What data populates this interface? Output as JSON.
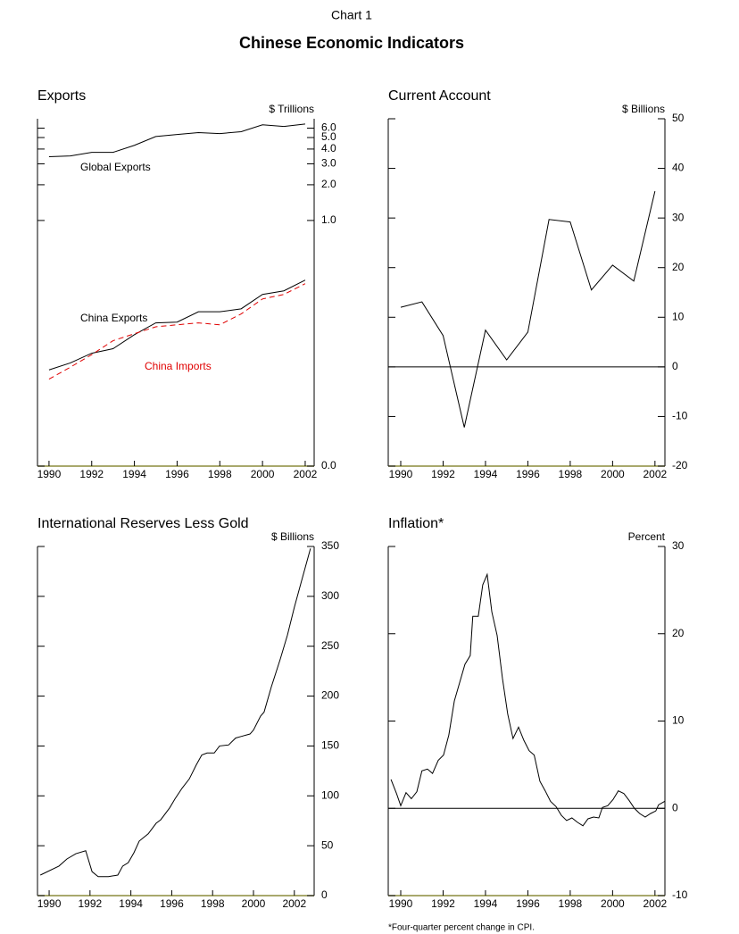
{
  "header": {
    "chart_label": "Chart 1",
    "title": "Chinese Economic Indicators"
  },
  "chart_data": [
    {
      "type": "line",
      "title": "Exports",
      "y_axis_label": "$ Trillions",
      "log_scale": true,
      "x": [
        1990,
        1991,
        1992,
        1993,
        1994,
        1995,
        1996,
        1997,
        1998,
        1999,
        2000,
        2001,
        2002
      ],
      "xlim": [
        1989.46,
        2002.42
      ],
      "xticks": [
        1990,
        1992,
        1994,
        1996,
        1998,
        2000,
        2002
      ],
      "ylim": [
        0.0085,
        7.2
      ],
      "yticks": [
        {
          "value": 0.0085,
          "label": "0.0"
        },
        {
          "value": 1,
          "label": "1.0"
        },
        {
          "value": 2,
          "label": "2.0"
        },
        {
          "value": 3,
          "label": "3.0"
        },
        {
          "value": 4,
          "label": "4.0"
        },
        {
          "value": 5,
          "label": "5.0"
        },
        {
          "value": 6,
          "label": "6.0"
        }
      ],
      "series": [
        {
          "name": "Global Exports",
          "color": "#000000",
          "style": "solid",
          "values": [
            3.45,
            3.5,
            3.75,
            3.75,
            4.3,
            5.1,
            5.3,
            5.5,
            5.4,
            5.6,
            6.4,
            6.2,
            6.5
          ]
        },
        {
          "name": "China Exports",
          "color": "#000000",
          "style": "solid",
          "values": [
            0.055,
            0.063,
            0.076,
            0.083,
            0.109,
            0.137,
            0.139,
            0.17,
            0.17,
            0.18,
            0.238,
            0.255,
            0.314
          ]
        },
        {
          "name": "China Imports",
          "color": "#e00000",
          "style": "dashed",
          "values": [
            0.046,
            0.058,
            0.074,
            0.097,
            0.111,
            0.127,
            0.132,
            0.137,
            0.132,
            0.163,
            0.218,
            0.238,
            0.293
          ]
        }
      ]
    },
    {
      "type": "line",
      "title": "Current Account",
      "y_axis_label": "$ Billions",
      "zero_line": true,
      "x": [
        1990,
        1991,
        1992,
        1993,
        1994,
        1995,
        1996,
        1997,
        1998,
        1999,
        2000,
        2001,
        2002
      ],
      "xlim": [
        1989.41,
        2002.47
      ],
      "xticks": [
        1990,
        1992,
        1994,
        1996,
        1998,
        2000,
        2002
      ],
      "ylim": [
        -20,
        50
      ],
      "yticks": [
        -20,
        -10,
        0,
        10,
        20,
        30,
        40,
        50
      ],
      "series": [
        {
          "color": "#000000",
          "style": "solid",
          "values": [
            12,
            13.1,
            6.3,
            -12.2,
            7.4,
            1.4,
            7,
            29.7,
            29.2,
            15.5,
            20.5,
            17.3,
            35.4
          ]
        }
      ]
    },
    {
      "type": "line",
      "title": "International Reserves Less Gold",
      "y_axis_label": "$ Billions",
      "x": [
        1989.57,
        1990.48,
        1990.87,
        1991.31,
        1991.79,
        1992.1,
        1992.4,
        1992.9,
        1993.36,
        1993.6,
        1993.87,
        1994.15,
        1994.41,
        1994.85,
        1995.24,
        1995.46,
        1995.9,
        1996.16,
        1996.5,
        1996.86,
        1997.2,
        1997.47,
        1997.73,
        1998.08,
        1998.34,
        1998.78,
        1999.13,
        1999.39,
        1999.83,
        2000.0,
        2000.35,
        2000.52,
        2000.87,
        2001.31,
        2001.66,
        2002.0,
        2002.36,
        2002.79
      ],
      "xlim": [
        1989.43,
        2002.97
      ],
      "xticks": [
        1990,
        1992,
        1994,
        1996,
        1998,
        2000,
        2002
      ],
      "ylim": [
        0,
        350
      ],
      "yticks": [
        0,
        50,
        100,
        150,
        200,
        250,
        300,
        350
      ],
      "series": [
        {
          "color": "#000000",
          "style": "solid",
          "values": [
            20.6,
            29.6,
            36.7,
            42,
            45,
            24,
            19,
            19,
            20.6,
            29.6,
            33,
            43,
            54.7,
            62,
            72.6,
            76,
            88,
            97,
            107.5,
            117,
            131,
            141,
            143,
            143,
            150,
            151,
            158,
            159.5,
            162,
            166,
            180,
            184,
            209,
            237,
            261,
            289,
            316,
            348
          ]
        }
      ]
    },
    {
      "type": "line",
      "title": "Inflation*",
      "y_axis_label": "Percent",
      "zero_line": true,
      "footnote": "*Four-quarter percent change in CPI.",
      "x": [
        1989.54,
        1989.8,
        1990.0,
        1990.25,
        1990.5,
        1990.76,
        1991.0,
        1991.26,
        1991.5,
        1991.77,
        1992.02,
        1992.27,
        1992.53,
        1992.78,
        1993.03,
        1993.28,
        1993.4,
        1993.66,
        1993.87,
        1994.08,
        1994.3,
        1994.55,
        1994.8,
        1995.05,
        1995.3,
        1995.56,
        1995.81,
        1996.06,
        1996.3,
        1996.57,
        1996.82,
        1997.07,
        1997.33,
        1997.58,
        1997.83,
        1998.08,
        1998.34,
        1998.6,
        1998.84,
        1999.1,
        1999.35,
        1999.52,
        1999.77,
        2000.02,
        2000.27,
        2000.53,
        2000.78,
        2001.03,
        2001.28,
        2001.54,
        2001.79,
        2002.04,
        2002.17,
        2002.46
      ],
      "xlim": [
        1989.41,
        2002.47
      ],
      "xticks": [
        1990,
        1992,
        1994,
        1996,
        1998,
        2000,
        2002
      ],
      "ylim": [
        -10,
        30
      ],
      "yticks": [
        -10,
        0,
        10,
        20,
        30
      ],
      "series": [
        {
          "color": "#000000",
          "style": "solid",
          "values": [
            3.3,
            1.7,
            0.3,
            1.8,
            1.1,
            1.9,
            4.3,
            4.5,
            4,
            5.5,
            6.1,
            8.4,
            12.3,
            14.4,
            16.5,
            17.5,
            22,
            22,
            25.6,
            26.8,
            22.5,
            19.8,
            14.9,
            10.8,
            8,
            9.3,
            7.8,
            6.6,
            6.1,
            3.1,
            2,
            0.8,
            0.2,
            -0.8,
            -1.4,
            -1.1,
            -1.6,
            -2,
            -1.2,
            -1,
            -1.1,
            0.1,
            0.3,
            1,
            2,
            1.7,
            0.9,
            0,
            -0.6,
            -1,
            -0.6,
            -0.3,
            0.4,
            0.8
          ]
        }
      ]
    }
  ]
}
